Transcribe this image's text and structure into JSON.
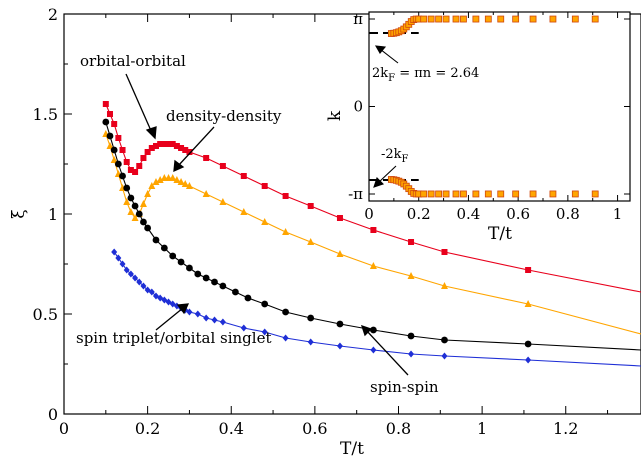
{
  "chart_data": [
    {
      "type": "line",
      "xlabel": "T/t",
      "ylabel": "ξ",
      "xlim": [
        0,
        1.38
      ],
      "ylim": [
        0,
        2
      ],
      "x_ticks": [
        "0",
        "0.2",
        "0.4",
        "0.6",
        "0.8",
        "1",
        "1.2"
      ],
      "y_ticks": [
        "0",
        "0.5",
        "1",
        "1.5",
        "2"
      ],
      "grid": false,
      "series": [
        {
          "name": "orbital-orbital",
          "color": "#e8001c",
          "marker": "square",
          "x": [
            0.1,
            0.11,
            0.12,
            0.13,
            0.14,
            0.15,
            0.16,
            0.17,
            0.18,
            0.19,
            0.2,
            0.21,
            0.22,
            0.23,
            0.24,
            0.25,
            0.26,
            0.27,
            0.28,
            0.29,
            0.3,
            0.34,
            0.38,
            0.43,
            0.48,
            0.53,
            0.59,
            0.66,
            0.74,
            0.83,
            0.91,
            1.11,
            1.38
          ],
          "y": [
            1.55,
            1.5,
            1.45,
            1.38,
            1.32,
            1.26,
            1.22,
            1.21,
            1.24,
            1.28,
            1.31,
            1.33,
            1.34,
            1.35,
            1.35,
            1.35,
            1.35,
            1.34,
            1.33,
            1.32,
            1.31,
            1.28,
            1.24,
            1.19,
            1.14,
            1.09,
            1.04,
            0.98,
            0.92,
            0.86,
            0.81,
            0.72,
            0.61
          ]
        },
        {
          "name": "density-density",
          "color": "#ffa500",
          "marker": "triangle",
          "x": [
            0.1,
            0.11,
            0.12,
            0.13,
            0.14,
            0.15,
            0.16,
            0.17,
            0.18,
            0.19,
            0.2,
            0.21,
            0.22,
            0.23,
            0.24,
            0.25,
            0.26,
            0.27,
            0.28,
            0.29,
            0.3,
            0.34,
            0.38,
            0.43,
            0.48,
            0.53,
            0.59,
            0.66,
            0.74,
            0.83,
            0.91,
            1.11,
            1.38
          ],
          "y": [
            1.4,
            1.34,
            1.27,
            1.2,
            1.13,
            1.06,
            1.01,
            0.98,
            1.0,
            1.05,
            1.1,
            1.14,
            1.16,
            1.17,
            1.18,
            1.18,
            1.18,
            1.17,
            1.16,
            1.15,
            1.14,
            1.1,
            1.06,
            1.01,
            0.96,
            0.91,
            0.86,
            0.8,
            0.74,
            0.69,
            0.64,
            0.55,
            0.4
          ]
        },
        {
          "name": "spin-spin",
          "color": "#000000",
          "marker": "circle",
          "x": [
            0.1,
            0.11,
            0.12,
            0.13,
            0.14,
            0.15,
            0.16,
            0.17,
            0.18,
            0.19,
            0.2,
            0.22,
            0.24,
            0.26,
            0.28,
            0.3,
            0.32,
            0.34,
            0.36,
            0.38,
            0.41,
            0.44,
            0.48,
            0.53,
            0.59,
            0.66,
            0.74,
            0.83,
            0.91,
            1.11,
            1.38
          ],
          "y": [
            1.46,
            1.39,
            1.32,
            1.25,
            1.19,
            1.13,
            1.08,
            1.04,
            1.0,
            0.96,
            0.93,
            0.87,
            0.83,
            0.79,
            0.76,
            0.73,
            0.7,
            0.68,
            0.66,
            0.64,
            0.61,
            0.58,
            0.55,
            0.51,
            0.48,
            0.45,
            0.42,
            0.39,
            0.37,
            0.35,
            0.32
          ]
        },
        {
          "name": "spin triplet/orbital singlet",
          "color": "#1f2fd6",
          "marker": "diamond",
          "x": [
            0.12,
            0.13,
            0.14,
            0.15,
            0.16,
            0.17,
            0.18,
            0.19,
            0.2,
            0.21,
            0.22,
            0.23,
            0.24,
            0.25,
            0.26,
            0.27,
            0.28,
            0.29,
            0.3,
            0.32,
            0.34,
            0.36,
            0.38,
            0.43,
            0.48,
            0.53,
            0.59,
            0.66,
            0.74,
            0.83,
            0.91,
            1.11,
            1.38
          ],
          "y": [
            0.81,
            0.78,
            0.75,
            0.72,
            0.7,
            0.68,
            0.66,
            0.64,
            0.62,
            0.61,
            0.59,
            0.58,
            0.57,
            0.56,
            0.55,
            0.54,
            0.53,
            0.52,
            0.51,
            0.5,
            0.48,
            0.47,
            0.46,
            0.43,
            0.41,
            0.38,
            0.36,
            0.34,
            0.32,
            0.3,
            0.29,
            0.27,
            0.24
          ]
        }
      ],
      "annotations": [
        {
          "text": "orbital-orbital",
          "target": [
            0.24,
            1.35
          ]
        },
        {
          "text": "density-density",
          "target": [
            0.27,
            1.17
          ]
        },
        {
          "text": "spin triplet/orbital singlet",
          "target": [
            0.3,
            0.48
          ]
        },
        {
          "text": "spin-spin",
          "target": [
            0.73,
            0.44
          ]
        }
      ]
    },
    {
      "type": "scatter",
      "xlabel": "T/t",
      "ylabel": "k",
      "xlim": [
        0,
        1.05
      ],
      "ylim": [
        "-π",
        "π"
      ],
      "x_ticks": [
        "0",
        "0.2",
        "0.4",
        "0.6",
        "0.8",
        "1"
      ],
      "y_ticks": [
        "-π",
        "0",
        "π"
      ],
      "reference_lines": [
        {
          "label": "2k_F = πn = 2.64",
          "y": 2.64,
          "style": "dashed"
        },
        {
          "label": "-2k_F",
          "y": -2.64,
          "style": "dashed"
        }
      ],
      "series": [
        {
          "name": "upper",
          "color": "#ffa500",
          "marker": "square",
          "x": [
            0.09,
            0.1,
            0.11,
            0.12,
            0.13,
            0.14,
            0.15,
            0.16,
            0.17,
            0.18,
            0.19,
            0.2,
            0.22,
            0.25,
            0.28,
            0.31,
            0.35,
            0.38,
            0.43,
            0.48,
            0.53,
            0.59,
            0.66,
            0.74,
            0.83,
            0.91
          ],
          "y": [
            2.62,
            2.63,
            2.65,
            2.68,
            2.72,
            2.78,
            2.86,
            2.95,
            3.05,
            3.12,
            3.14,
            3.14,
            3.14,
            3.14,
            3.14,
            3.14,
            3.14,
            3.14,
            3.14,
            3.14,
            3.14,
            3.14,
            3.14,
            3.14,
            3.14,
            3.14
          ]
        },
        {
          "name": "lower",
          "color": "#ffa500",
          "marker": "square",
          "x": [
            0.09,
            0.1,
            0.11,
            0.12,
            0.13,
            0.14,
            0.15,
            0.16,
            0.17,
            0.18,
            0.19,
            0.2,
            0.22,
            0.25,
            0.28,
            0.31,
            0.35,
            0.38,
            0.43,
            0.48,
            0.53,
            0.59,
            0.66,
            0.74,
            0.83,
            0.91
          ],
          "y": [
            -2.62,
            -2.63,
            -2.65,
            -2.68,
            -2.72,
            -2.78,
            -2.86,
            -2.95,
            -3.05,
            -3.12,
            -3.14,
            -3.14,
            -3.14,
            -3.14,
            -3.14,
            -3.14,
            -3.14,
            -3.14,
            -3.14,
            -3.14,
            -3.14,
            -3.14,
            -3.14,
            -3.14,
            -3.14,
            -3.14
          ]
        }
      ]
    }
  ]
}
